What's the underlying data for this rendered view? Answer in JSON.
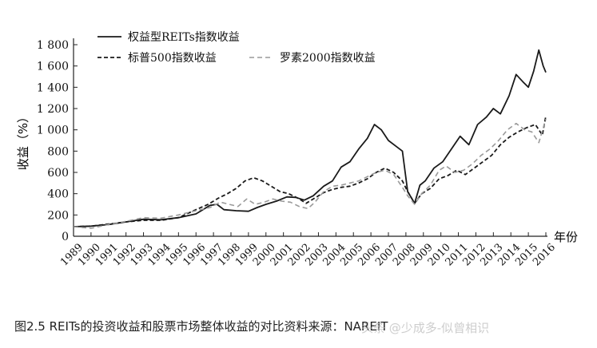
{
  "chart_data": {
    "type": "line",
    "ylabel": "收益（%）",
    "xlabel": "年份",
    "ylim": [
      0,
      1800
    ],
    "yticks": [
      0,
      200,
      400,
      600,
      800,
      1000,
      1200,
      1400,
      1600,
      1800
    ],
    "ytick_labels": [
      "0",
      "200",
      "400",
      "600",
      "800",
      "1 000",
      "1 200",
      "1 400",
      "1 600",
      "1 800"
    ],
    "xlim": [
      1989,
      2016
    ],
    "xticks": [
      "1989",
      "1990",
      "1991",
      "1992",
      "1993",
      "1994",
      "1995",
      "1996",
      "1997",
      "1998",
      "1999",
      "2000",
      "2001",
      "2002",
      "2003",
      "2004",
      "2005",
      "2006",
      "2007",
      "2008",
      "2009",
      "2010",
      "2011",
      "2012",
      "2013",
      "2014",
      "2015",
      "2016"
    ],
    "legend_position": "top-left",
    "grid": false,
    "series": [
      {
        "name": "权益型REITs指数收益",
        "style": "solid",
        "color": "#1a1a1a",
        "points": [
          [
            1989,
            90
          ],
          [
            1990,
            95
          ],
          [
            1991,
            110
          ],
          [
            1992,
            135
          ],
          [
            1993,
            160
          ],
          [
            1994,
            155
          ],
          [
            1995,
            175
          ],
          [
            1996,
            210
          ],
          [
            1996.8,
            290
          ],
          [
            1997.2,
            300
          ],
          [
            1997.6,
            250
          ],
          [
            1998.3,
            240
          ],
          [
            1999,
            235
          ],
          [
            1999.5,
            270
          ],
          [
            2000,
            300
          ],
          [
            2000.6,
            330
          ],
          [
            2001.2,
            370
          ],
          [
            2001.7,
            365
          ],
          [
            2002.2,
            340
          ],
          [
            2002.7,
            380
          ],
          [
            2003.3,
            470
          ],
          [
            2003.8,
            520
          ],
          [
            2004.3,
            650
          ],
          [
            2004.8,
            700
          ],
          [
            2005.3,
            820
          ],
          [
            2005.8,
            920
          ],
          [
            2006.2,
            1050
          ],
          [
            2006.6,
            1000
          ],
          [
            2007,
            900
          ],
          [
            2007.4,
            850
          ],
          [
            2007.8,
            800
          ],
          [
            2008.1,
            420
          ],
          [
            2008.5,
            310
          ],
          [
            2008.8,
            480
          ],
          [
            2009.1,
            520
          ],
          [
            2009.6,
            640
          ],
          [
            2010.1,
            700
          ],
          [
            2010.6,
            820
          ],
          [
            2011.1,
            940
          ],
          [
            2011.6,
            860
          ],
          [
            2012.1,
            1050
          ],
          [
            2012.6,
            1120
          ],
          [
            2013,
            1200
          ],
          [
            2013.4,
            1150
          ],
          [
            2013.9,
            1320
          ],
          [
            2014.3,
            1520
          ],
          [
            2014.7,
            1450
          ],
          [
            2015,
            1400
          ],
          [
            2015.3,
            1550
          ],
          [
            2015.6,
            1750
          ],
          [
            2015.85,
            1600
          ],
          [
            2016,
            1540
          ]
        ]
      },
      {
        "name": "标普500指数收益",
        "style": "dashed",
        "color": "#1a1a1a",
        "points": [
          [
            1989,
            90
          ],
          [
            1990,
            95
          ],
          [
            1991,
            115
          ],
          [
            1992,
            135
          ],
          [
            1993,
            150
          ],
          [
            1994,
            150
          ],
          [
            1995,
            175
          ],
          [
            1996,
            250
          ],
          [
            1996.7,
            300
          ],
          [
            1997.3,
            360
          ],
          [
            1997.8,
            400
          ],
          [
            1998.3,
            450
          ],
          [
            1998.8,
            520
          ],
          [
            1999.3,
            550
          ],
          [
            1999.8,
            520
          ],
          [
            2000.3,
            470
          ],
          [
            2000.8,
            420
          ],
          [
            2001.3,
            400
          ],
          [
            2001.8,
            360
          ],
          [
            2002.3,
            310
          ],
          [
            2002.8,
            360
          ],
          [
            2003.3,
            410
          ],
          [
            2003.8,
            440
          ],
          [
            2004.3,
            460
          ],
          [
            2004.8,
            470
          ],
          [
            2005.3,
            500
          ],
          [
            2005.8,
            540
          ],
          [
            2006.3,
            600
          ],
          [
            2006.8,
            640
          ],
          [
            2007.3,
            600
          ],
          [
            2007.8,
            520
          ],
          [
            2008.1,
            420
          ],
          [
            2008.5,
            310
          ],
          [
            2008.9,
            400
          ],
          [
            2009.4,
            450
          ],
          [
            2009.9,
            540
          ],
          [
            2010.4,
            570
          ],
          [
            2010.9,
            620
          ],
          [
            2011.4,
            580
          ],
          [
            2011.9,
            640
          ],
          [
            2012.4,
            700
          ],
          [
            2012.9,
            760
          ],
          [
            2013.4,
            860
          ],
          [
            2013.9,
            930
          ],
          [
            2014.4,
            980
          ],
          [
            2014.9,
            1020
          ],
          [
            2015.4,
            1050
          ],
          [
            2015.8,
            950
          ],
          [
            2016,
            1130
          ]
        ]
      },
      {
        "name": "罗素2000指数收益",
        "style": "dashed-light",
        "color": "#9a9a9a",
        "points": [
          [
            1989,
            90
          ],
          [
            1990,
            75
          ],
          [
            1991,
            110
          ],
          [
            1992,
            140
          ],
          [
            1993,
            175
          ],
          [
            1994,
            170
          ],
          [
            1995,
            200
          ],
          [
            1996,
            240
          ],
          [
            1996.8,
            270
          ],
          [
            1997.4,
            320
          ],
          [
            1997.9,
            300
          ],
          [
            1998.4,
            280
          ],
          [
            1998.9,
            350
          ],
          [
            1999.4,
            300
          ],
          [
            1999.9,
            320
          ],
          [
            2000.4,
            350
          ],
          [
            2000.9,
            330
          ],
          [
            2001.4,
            320
          ],
          [
            2001.9,
            280
          ],
          [
            2002.4,
            260
          ],
          [
            2002.8,
            320
          ],
          [
            2003.3,
            420
          ],
          [
            2003.8,
            470
          ],
          [
            2004.3,
            480
          ],
          [
            2004.8,
            500
          ],
          [
            2005.3,
            520
          ],
          [
            2005.8,
            560
          ],
          [
            2006.3,
            600
          ],
          [
            2006.8,
            620
          ],
          [
            2007.3,
            580
          ],
          [
            2007.8,
            460
          ],
          [
            2008.1,
            380
          ],
          [
            2008.5,
            300
          ],
          [
            2008.9,
            400
          ],
          [
            2009.4,
            480
          ],
          [
            2009.9,
            620
          ],
          [
            2010.3,
            660
          ],
          [
            2010.8,
            600
          ],
          [
            2011.3,
            620
          ],
          [
            2011.8,
            680
          ],
          [
            2012.3,
            760
          ],
          [
            2012.8,
            820
          ],
          [
            2013.3,
            900
          ],
          [
            2013.8,
            1000
          ],
          [
            2014.3,
            1060
          ],
          [
            2014.8,
            1000
          ],
          [
            2015.2,
            980
          ],
          [
            2015.6,
            880
          ],
          [
            2016,
            1100
          ]
        ]
      }
    ]
  },
  "caption": "图2.5 REITs的投资收益和股票市场整体收益的对比资料来源：NAREIT",
  "watermark": "头条 @少成多-似曾相识"
}
